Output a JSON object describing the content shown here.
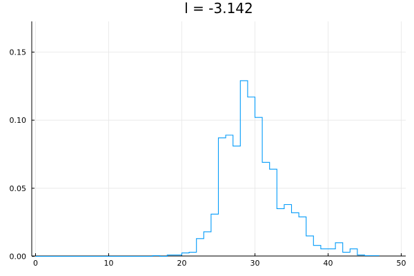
{
  "chart_data": {
    "type": "histogram",
    "title": "l = -3.142",
    "xlabel": "",
    "ylabel": "",
    "xlim": [
      0,
      50
    ],
    "ylim": [
      0,
      0.1725
    ],
    "xticks": [
      "0",
      "10",
      "20",
      "30",
      "40",
      "50"
    ],
    "xtick_values": [
      0,
      10,
      20,
      30,
      40,
      50
    ],
    "yticks": [
      "0.00",
      "0.05",
      "0.10",
      "0.15"
    ],
    "ytick_values": [
      0,
      0.05,
      0.1,
      0.15
    ],
    "grid": true,
    "legend": "none",
    "series": [
      {
        "color": "#009af9",
        "bin_edges": [
          0,
          1,
          2,
          3,
          4,
          5,
          6,
          7,
          8,
          9,
          10,
          11,
          12,
          13,
          14,
          15,
          16,
          17,
          18,
          19,
          20,
          21,
          22,
          23,
          24,
          25,
          26,
          27,
          28,
          29,
          30,
          31,
          32,
          33,
          34,
          35,
          36,
          37,
          38,
          39,
          40,
          41,
          42,
          43,
          44,
          45,
          46,
          47
        ],
        "values": [
          0,
          0,
          0,
          0,
          0,
          0,
          0,
          0,
          0,
          0,
          0,
          0,
          0,
          0,
          0,
          0,
          0.0005,
          0,
          0.001,
          0.001,
          0.0025,
          0.003,
          0.013,
          0.018,
          0.031,
          0.087,
          0.089,
          0.081,
          0.129,
          0.117,
          0.102,
          0.069,
          0.064,
          0.035,
          0.038,
          0.032,
          0.029,
          0.015,
          0.008,
          0.0055,
          0.0055,
          0.01,
          0.003,
          0.0055,
          0.001,
          0.0005,
          0.0005
        ]
      }
    ]
  }
}
